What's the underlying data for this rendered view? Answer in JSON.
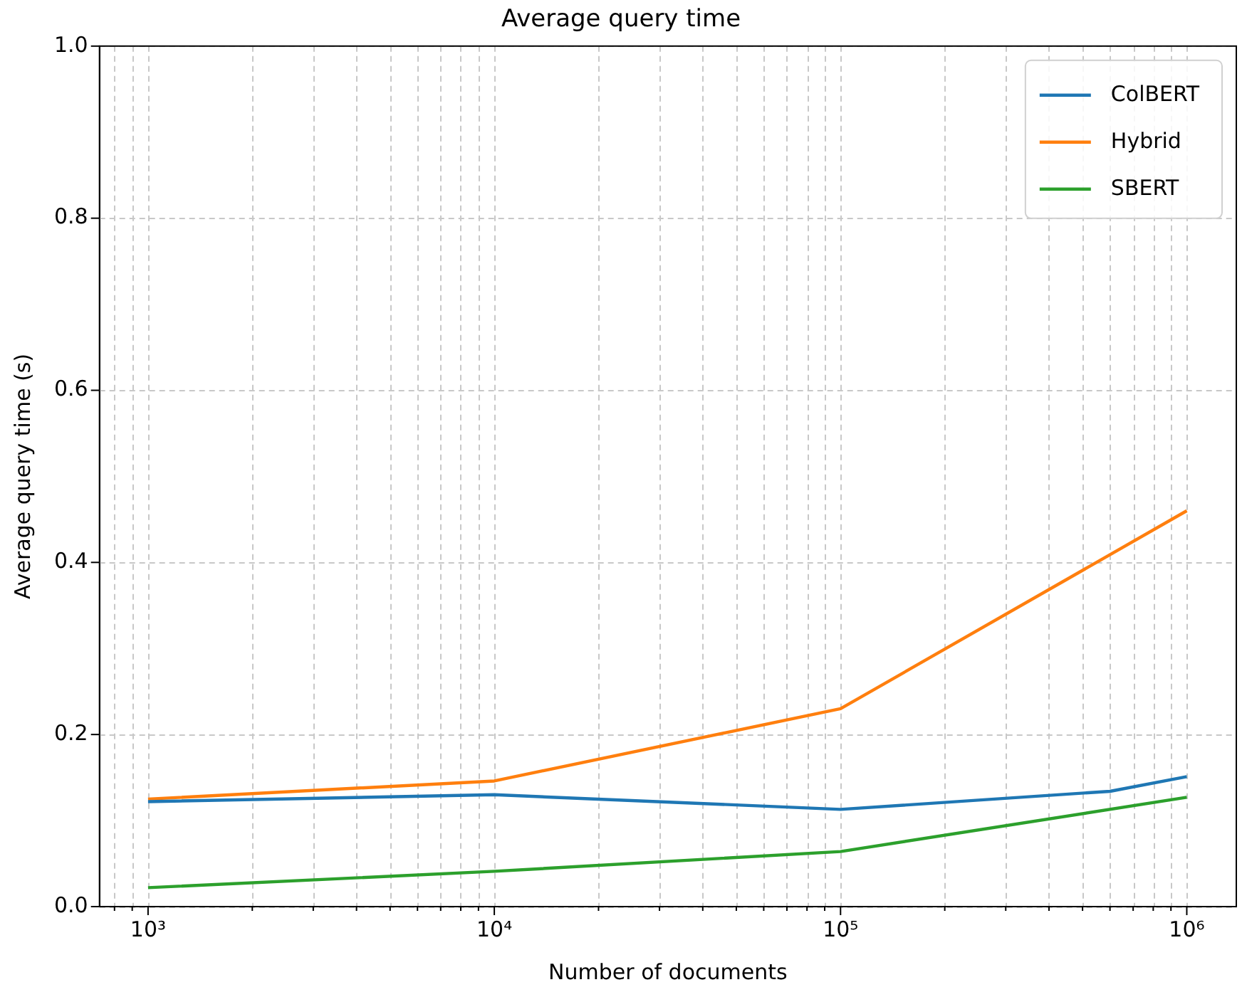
{
  "chart_data": {
    "type": "line",
    "title": "Average query time",
    "xlabel": "Number of documents",
    "ylabel": "Average query time (s)",
    "log": "x",
    "xlim": [
      724,
      1390000
    ],
    "ylim": [
      0,
      1.0
    ],
    "xticks": [
      {
        "value": 800,
        "label": null
      },
      {
        "value": 900,
        "label": null
      },
      {
        "value": 1000,
        "label": "10³"
      },
      {
        "value": 2000,
        "label": null
      },
      {
        "value": 3000,
        "label": null
      },
      {
        "value": 4000,
        "label": null
      },
      {
        "value": 5000,
        "label": null
      },
      {
        "value": 6000,
        "label": null
      },
      {
        "value": 7000,
        "label": null
      },
      {
        "value": 8000,
        "label": null
      },
      {
        "value": 9000,
        "label": null
      },
      {
        "value": 10000,
        "label": "10⁴"
      },
      {
        "value": 20000,
        "label": null
      },
      {
        "value": 30000,
        "label": null
      },
      {
        "value": 40000,
        "label": null
      },
      {
        "value": 50000,
        "label": null
      },
      {
        "value": 60000,
        "label": null
      },
      {
        "value": 70000,
        "label": null
      },
      {
        "value": 80000,
        "label": null
      },
      {
        "value": 90000,
        "label": null
      },
      {
        "value": 100000,
        "label": "10⁵"
      },
      {
        "value": 200000,
        "label": null
      },
      {
        "value": 300000,
        "label": null
      },
      {
        "value": 400000,
        "label": null
      },
      {
        "value": 500000,
        "label": null
      },
      {
        "value": 600000,
        "label": null
      },
      {
        "value": 700000,
        "label": null
      },
      {
        "value": 800000,
        "label": null
      },
      {
        "value": 900000,
        "label": null
      },
      {
        "value": 1000000,
        "label": "10⁶"
      }
    ],
    "yticks": [
      {
        "value": 0,
        "label": "0.0"
      },
      {
        "value": 0.2,
        "label": "0.2"
      },
      {
        "value": 0.4,
        "label": "0.4"
      },
      {
        "value": 0.6,
        "label": "0.6"
      },
      {
        "value": 0.8,
        "label": "0.8"
      },
      {
        "value": 1,
        "label": "1.0"
      }
    ],
    "x": [
      1000,
      10000,
      100000,
      1000000
    ],
    "series": [
      {
        "name": "ColBERT",
        "color": "#1f77b4",
        "x": [
          1000,
          10000,
          100000,
          600000,
          1000000
        ],
        "values": [
          0.122,
          0.13,
          0.113,
          0.134,
          0.151
        ]
      },
      {
        "name": "Hybrid",
        "color": "#ff7f0e",
        "values": [
          0.125,
          0.146,
          0.23,
          0.46
        ]
      },
      {
        "name": "SBERT",
        "color": "#2ca02c",
        "values": [
          0.022,
          0.041,
          0.064,
          0.127
        ]
      }
    ],
    "grid": true,
    "legend": "top right",
    "line_style": "solid",
    "marker": "none"
  }
}
